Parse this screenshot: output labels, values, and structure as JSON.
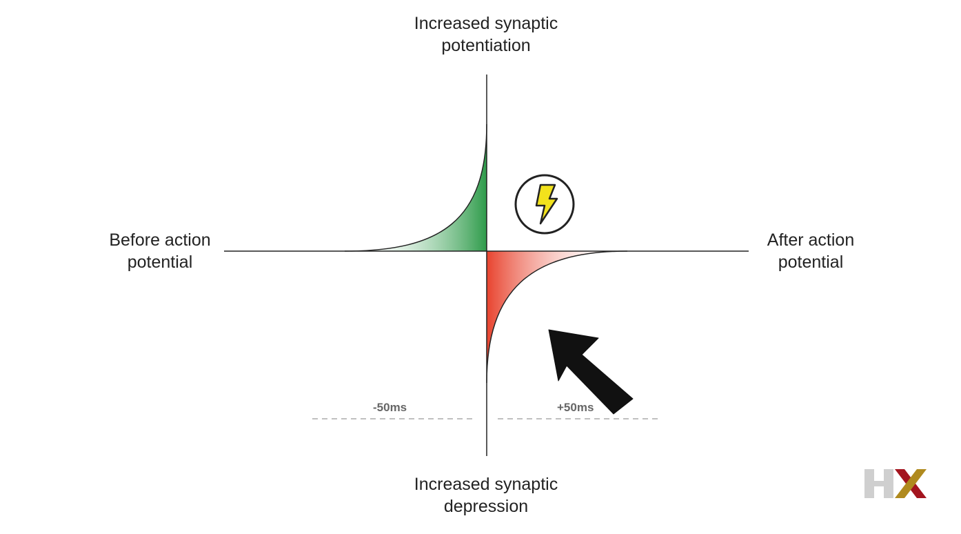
{
  "labels": {
    "top": [
      "Increased synaptic",
      "potentiation"
    ],
    "bottom": [
      "Increased synaptic",
      "depression"
    ],
    "left": [
      "Before action",
      "potential"
    ],
    "right": [
      "After action",
      "potential"
    ],
    "minus_window": "-50ms",
    "plus_window": "+50ms"
  },
  "icons": {
    "spike": "lightning-bolt-icon",
    "arrow": "arrow-up-left-icon",
    "logo": "hx-logo"
  },
  "colors": {
    "potentiation": "#2e9b4a",
    "depression": "#e8432e",
    "bolt": "#f2e21c",
    "axis": "#222222",
    "dashes": "#aaaaaa",
    "logo_h": "#cfcfcf",
    "logo_x_red": "#a3141e",
    "logo_x_gold": "#b08a1e"
  }
}
